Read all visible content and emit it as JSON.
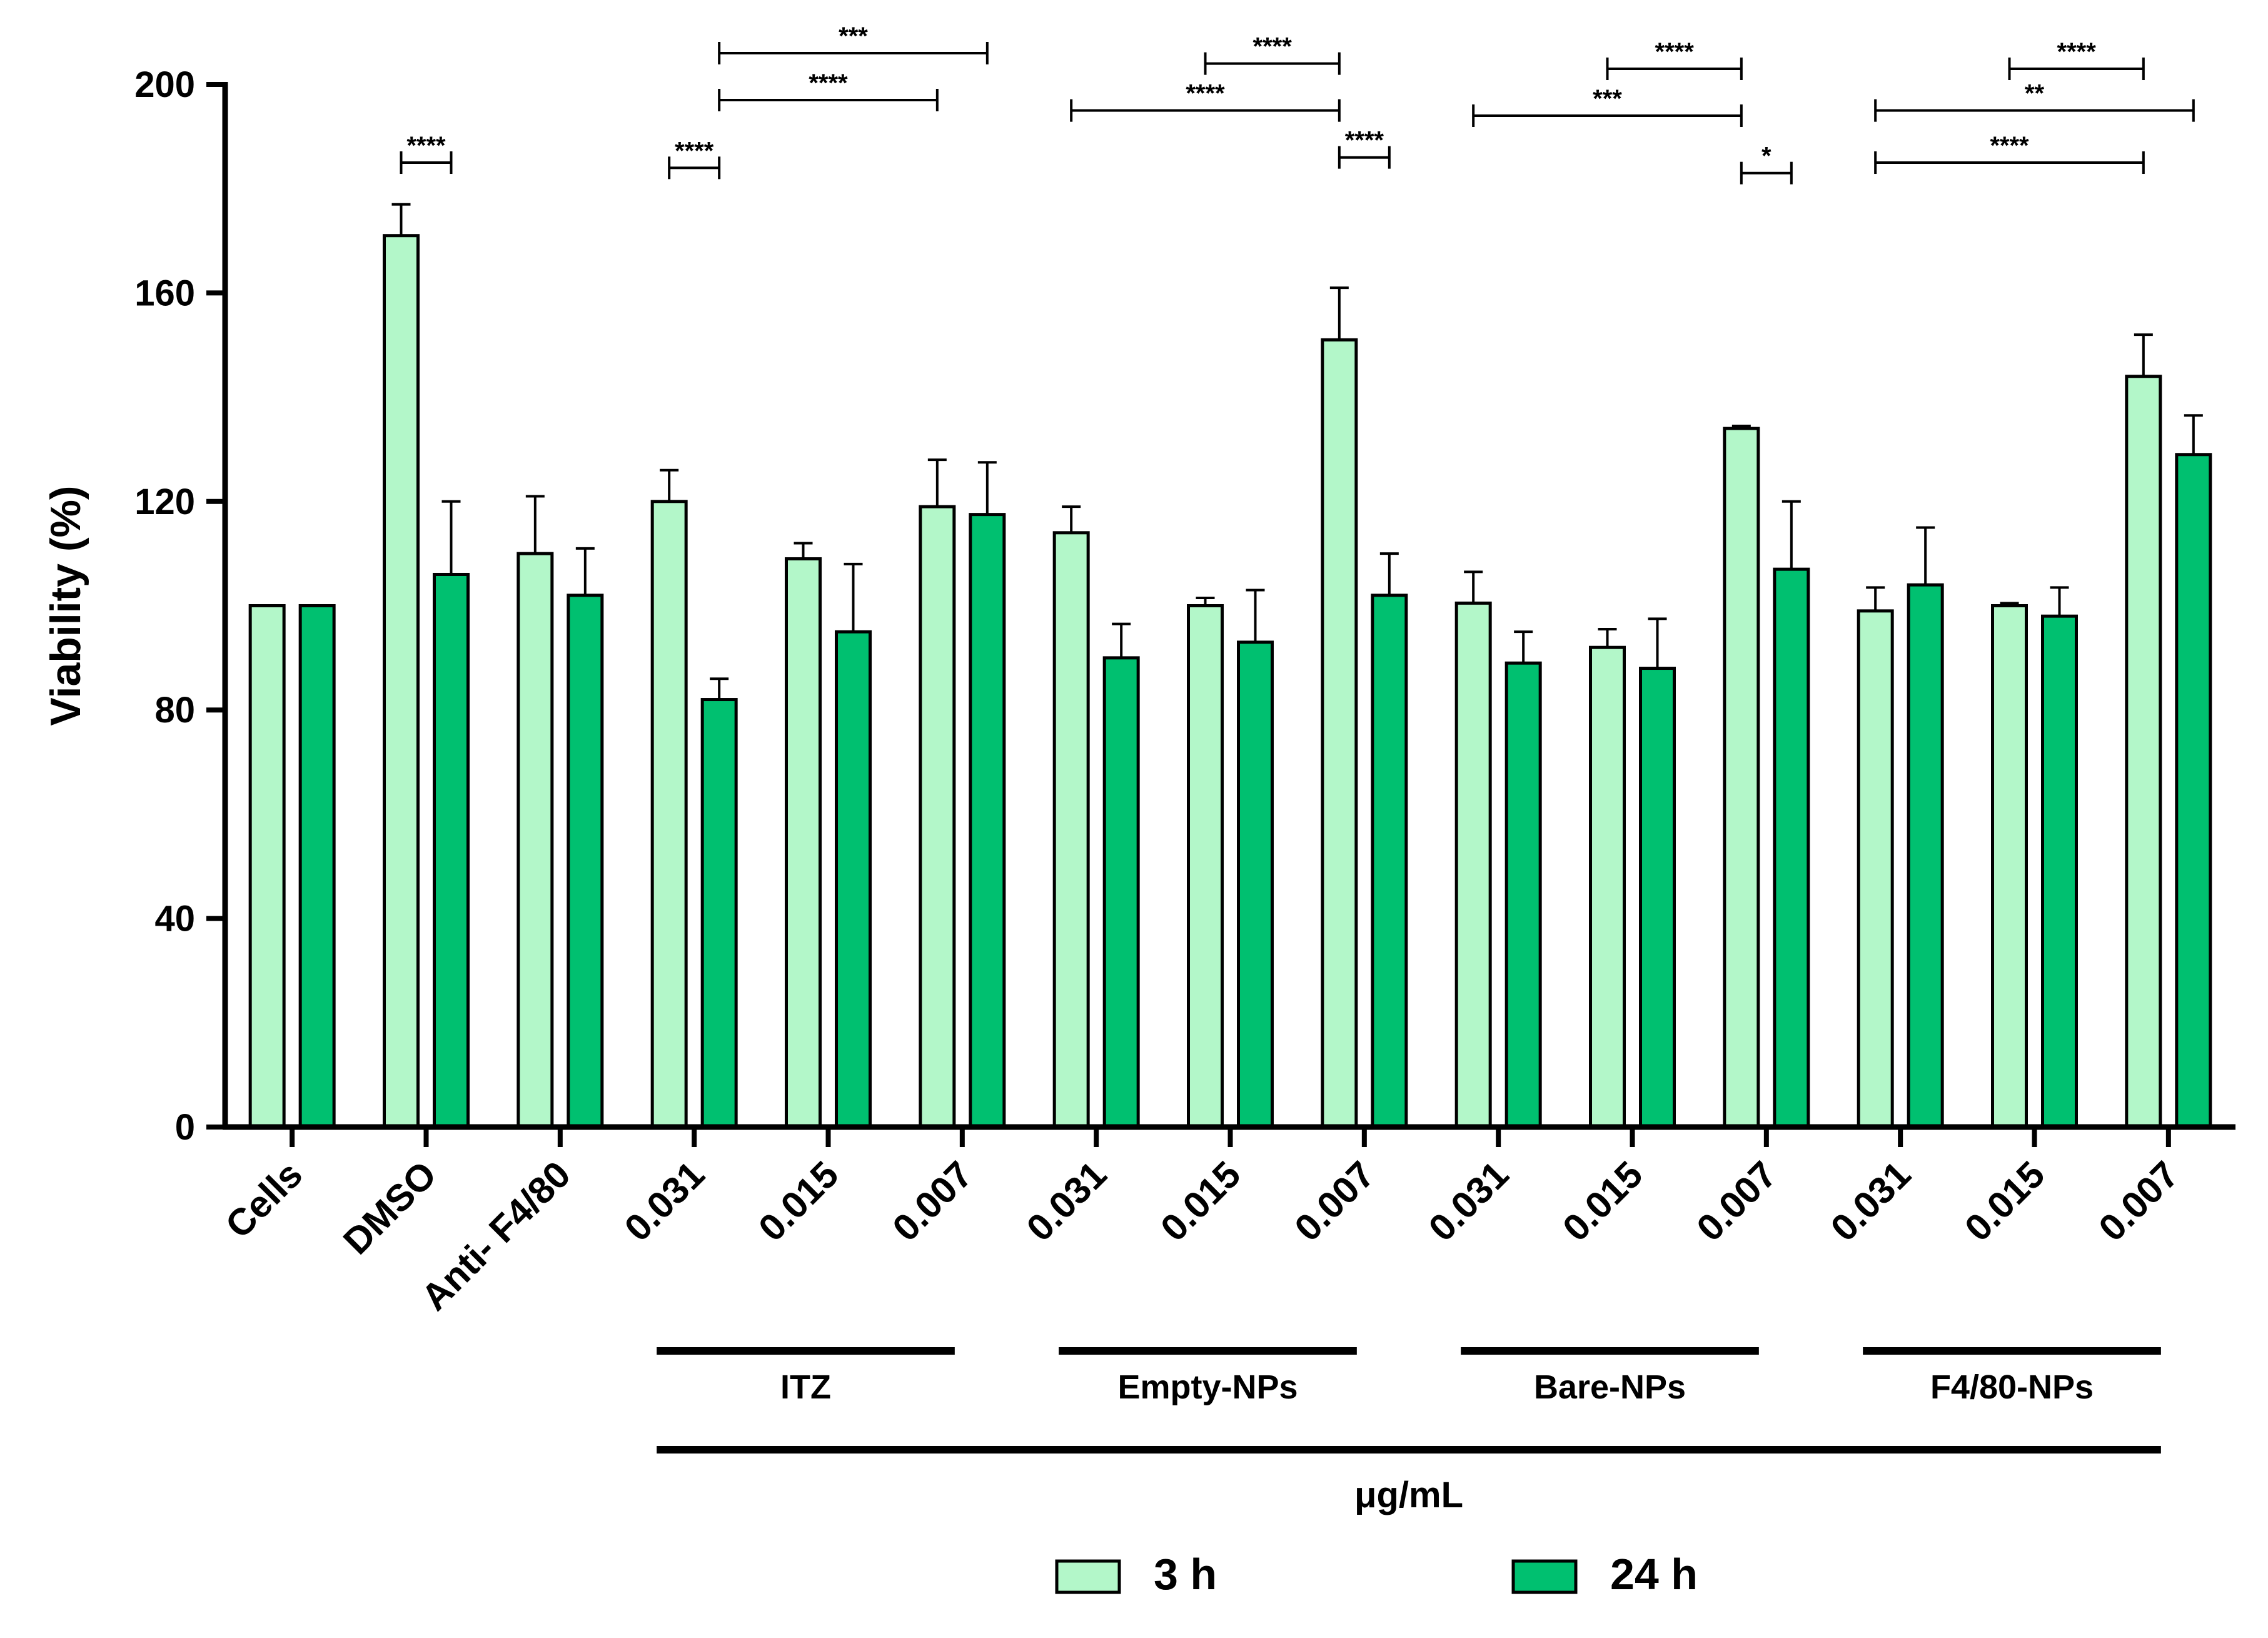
{
  "chart_data": {
    "type": "bar",
    "ylabel": "Viability (%)",
    "ylim": [
      0,
      200
    ],
    "yticks": [
      0,
      40,
      80,
      120,
      160,
      200
    ],
    "grid": false,
    "categories": [
      "Cells",
      "DMSO",
      "Anti- F4/80",
      "0.031",
      "0.015",
      "0.007",
      "0.031",
      "0.015",
      "0.007",
      "0.031",
      "0.015",
      "0.007",
      "0.031",
      "0.015",
      "0.007"
    ],
    "series": [
      {
        "name": "3 h",
        "color": "#b3f7c9",
        "values": [
          100,
          171,
          110,
          120,
          109,
          119,
          114,
          100,
          151,
          100.5,
          92,
          134,
          99,
          100,
          144
        ],
        "errors": [
          0,
          6,
          11,
          6,
          3,
          9,
          5,
          1.5,
          10,
          6,
          3.5,
          0.5,
          4.5,
          0.5,
          8
        ]
      },
      {
        "name": "24 h",
        "color": "#00c070",
        "values": [
          100,
          106,
          102,
          82,
          95,
          117.5,
          90,
          93,
          102,
          89,
          88,
          107,
          104,
          98,
          129
        ],
        "errors": [
          0,
          14,
          9,
          4,
          13,
          10,
          6.5,
          10,
          8,
          6,
          9.5,
          13,
          11,
          5.5,
          7.5
        ]
      }
    ],
    "groups": [
      {
        "label": "ITZ",
        "from": 3,
        "to": 5
      },
      {
        "label": "Empty-NPs",
        "from": 6,
        "to": 8
      },
      {
        "label": "Bare-NPs",
        "from": 9,
        "to": 11
      },
      {
        "label": "F4/80-NPs",
        "from": 12,
        "to": 14
      }
    ],
    "unit_label": "μg/mL",
    "legend_position": "bottom",
    "significance": [
      {
        "from": [
          1,
          0
        ],
        "to": [
          1,
          1
        ],
        "label": "****",
        "level": 185
      },
      {
        "from": [
          3,
          0
        ],
        "to": [
          3,
          1
        ],
        "label": "****",
        "level": 184
      },
      {
        "from": [
          3,
          1
        ],
        "to": [
          5,
          0
        ],
        "label": "****",
        "level": 197
      },
      {
        "from": [
          3,
          1
        ],
        "to": [
          5,
          1
        ],
        "label": "***",
        "level": 206
      },
      {
        "from": [
          6,
          0
        ],
        "to": [
          8,
          0
        ],
        "label": "****",
        "level": 195
      },
      {
        "from": [
          7,
          0
        ],
        "to": [
          8,
          0
        ],
        "label": "****",
        "level": 204
      },
      {
        "from": [
          8,
          0
        ],
        "to": [
          8,
          1
        ],
        "label": "****",
        "level": 186
      },
      {
        "from": [
          9,
          0
        ],
        "to": [
          11,
          0
        ],
        "label": "***",
        "level": 194
      },
      {
        "from": [
          10,
          0
        ],
        "to": [
          11,
          0
        ],
        "label": "****",
        "level": 203
      },
      {
        "from": [
          11,
          0
        ],
        "to": [
          11,
          1
        ],
        "label": "*",
        "level": 183
      },
      {
        "from": [
          12,
          0
        ],
        "to": [
          14,
          0
        ],
        "label": "****",
        "level": 185
      },
      {
        "from": [
          12,
          0
        ],
        "to": [
          14,
          1
        ],
        "label": "**",
        "level": 195
      },
      {
        "from": [
          13,
          0
        ],
        "to": [
          14,
          0
        ],
        "label": "****",
        "level": 203
      }
    ]
  }
}
